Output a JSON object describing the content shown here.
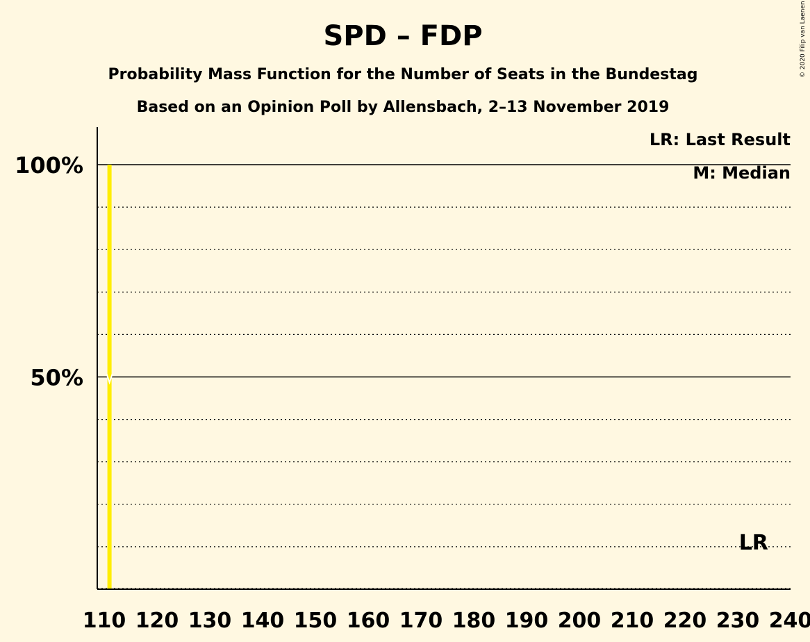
{
  "chart_data": {
    "type": "bar",
    "title": "SPD – FDP",
    "subtitle_1": "Probability Mass Function for the Number of Seats in the Bundestag",
    "subtitle_2": "Based on an Opinion Poll by Allensbach, 2–13 November 2019",
    "copyright": "© 2020 Filip van Laenen",
    "legend": {
      "last_result": "LR: Last Result",
      "median": "M: Median"
    },
    "xlabel": "",
    "ylabel": "",
    "xlim": [
      110,
      240
    ],
    "ylim": [
      0,
      100
    ],
    "x_ticks": [
      110,
      120,
      130,
      140,
      150,
      160,
      170,
      180,
      190,
      200,
      210,
      220,
      230,
      240
    ],
    "y_tick_labels": [
      {
        "value": 100,
        "label": "100%"
      },
      {
        "value": 50,
        "label": "50%"
      }
    ],
    "y_gridlines": [
      10,
      20,
      30,
      40,
      50,
      60,
      70,
      80,
      90,
      100
    ],
    "bars": [
      {
        "seats": 111,
        "probability": 100
      }
    ],
    "median_seats": 111,
    "last_result": {
      "seats": 233,
      "label": "LR"
    },
    "colors": {
      "background": "#FFF8E1",
      "bar": "#FFED00",
      "grid": "#000000"
    }
  }
}
